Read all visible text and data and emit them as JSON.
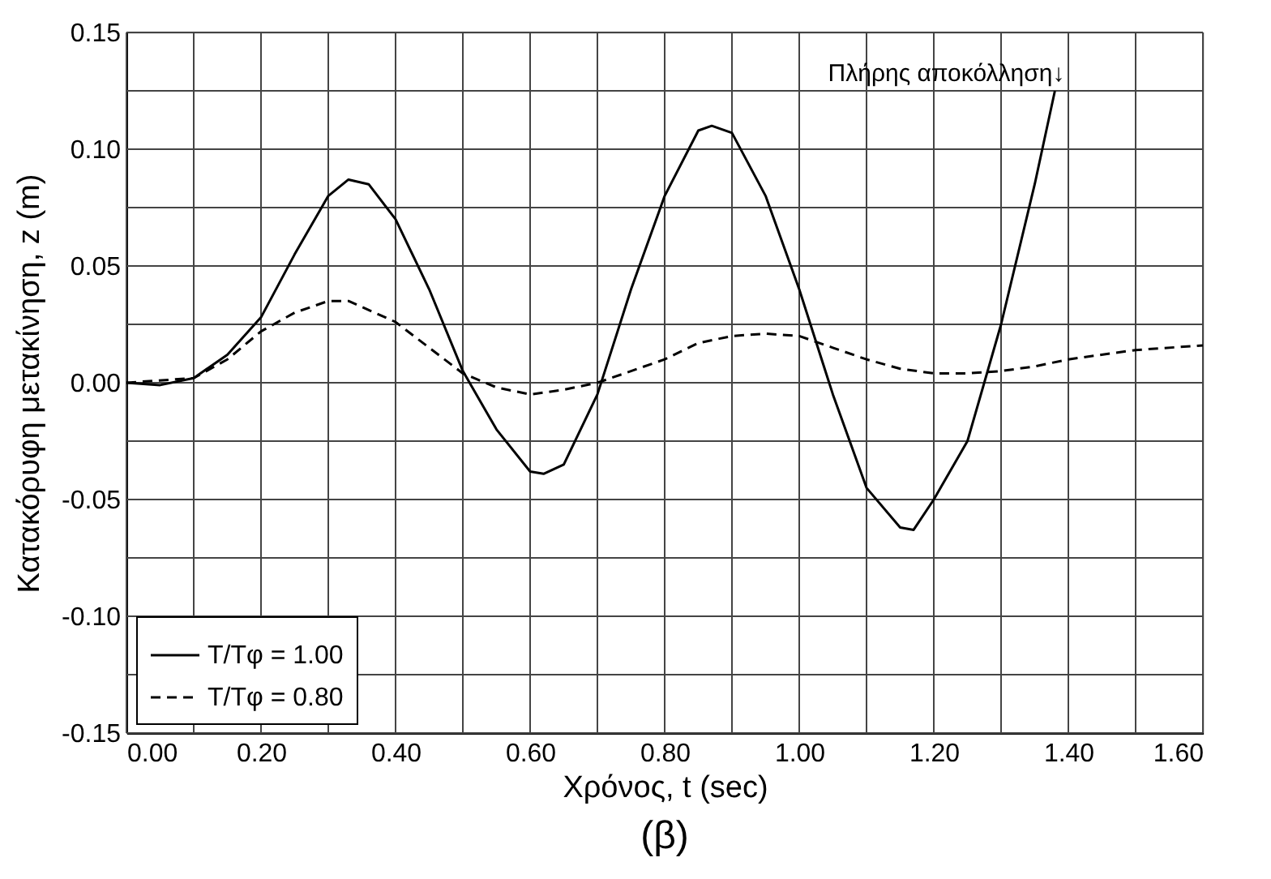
{
  "chart_data": {
    "type": "line",
    "xlabel": "Χρόνος, t (sec)",
    "ylabel": "Κατακόρυφη μετακίνηση, z (m)",
    "xlim": [
      0,
      1.6
    ],
    "ylim": [
      -0.15,
      0.15
    ],
    "xticks": [
      {
        "value": 0.0,
        "label": "0.00"
      },
      {
        "value": 0.1,
        "label": null
      },
      {
        "value": 0.2,
        "label": "0.20"
      },
      {
        "value": 0.3,
        "label": null
      },
      {
        "value": 0.4,
        "label": "0.40"
      },
      {
        "value": 0.5,
        "label": null
      },
      {
        "value": 0.6,
        "label": "0.60"
      },
      {
        "value": 0.7,
        "label": null
      },
      {
        "value": 0.8,
        "label": "0.80"
      },
      {
        "value": 0.9,
        "label": null
      },
      {
        "value": 1.0,
        "label": "1.00"
      },
      {
        "value": 1.1,
        "label": null
      },
      {
        "value": 1.2,
        "label": "1.20"
      },
      {
        "value": 1.3,
        "label": null
      },
      {
        "value": 1.4,
        "label": "1.40"
      },
      {
        "value": 1.5,
        "label": null
      },
      {
        "value": 1.6,
        "label": "1.60"
      }
    ],
    "yticks": [
      {
        "value": -0.15,
        "label": "-0.15"
      },
      {
        "value": -0.125,
        "label": null
      },
      {
        "value": -0.1,
        "label": "-0.10"
      },
      {
        "value": -0.075,
        "label": null
      },
      {
        "value": -0.05,
        "label": "-0.05"
      },
      {
        "value": -0.025,
        "label": null
      },
      {
        "value": 0.0,
        "label": "0.00"
      },
      {
        "value": 0.025,
        "label": null
      },
      {
        "value": 0.05,
        "label": "0.05"
      },
      {
        "value": 0.075,
        "label": null
      },
      {
        "value": 0.1,
        "label": "0.10"
      },
      {
        "value": 0.125,
        "label": null
      },
      {
        "value": 0.15,
        "label": "0.15"
      }
    ],
    "grid": true,
    "legend": "bottom left",
    "marker": "none",
    "series": [
      {
        "name": "T/Tφ = 1.00",
        "color": "#000000",
        "line_style": "solid",
        "x": [
          0,
          0.05,
          0.1,
          0.15,
          0.2,
          0.25,
          0.3,
          0.33,
          0.36,
          0.4,
          0.45,
          0.5,
          0.55,
          0.6,
          0.62,
          0.65,
          0.7,
          0.75,
          0.8,
          0.85,
          0.87,
          0.9,
          0.95,
          1.0,
          1.05,
          1.1,
          1.15,
          1.17,
          1.2,
          1.25,
          1.3,
          1.35,
          1.38
        ],
        "values": [
          0,
          -0.001,
          0.002,
          0.012,
          0.028,
          0.055,
          0.08,
          0.087,
          0.085,
          0.07,
          0.04,
          0.005,
          -0.02,
          -0.038,
          -0.039,
          -0.035,
          -0.005,
          0.04,
          0.08,
          0.108,
          0.11,
          0.107,
          0.08,
          0.04,
          -0.005,
          -0.045,
          -0.062,
          -0.063,
          -0.05,
          -0.025,
          0.025,
          0.085,
          0.125
        ]
      },
      {
        "name": "T/Tφ = 0.80",
        "color": "#000000",
        "line_style": "dashed",
        "x": [
          0,
          0.1,
          0.15,
          0.2,
          0.25,
          0.3,
          0.33,
          0.4,
          0.45,
          0.5,
          0.55,
          0.6,
          0.65,
          0.7,
          0.75,
          0.8,
          0.85,
          0.9,
          0.95,
          1.0,
          1.05,
          1.1,
          1.15,
          1.2,
          1.25,
          1.3,
          1.35,
          1.4,
          1.5,
          1.6
        ],
        "values": [
          0,
          0.002,
          0.01,
          0.022,
          0.03,
          0.035,
          0.035,
          0.026,
          0.015,
          0.004,
          -0.002,
          -0.005,
          -0.003,
          0.0,
          0.005,
          0.01,
          0.017,
          0.02,
          0.021,
          0.02,
          0.015,
          0.01,
          0.006,
          0.004,
          0.004,
          0.005,
          0.007,
          0.01,
          0.014,
          0.016
        ]
      }
    ],
    "annotations": [
      {
        "text": "Πλήρης αποκόλληση↓",
        "x": 1.38,
        "y": 0.125
      },
      "(β)"
    ]
  }
}
